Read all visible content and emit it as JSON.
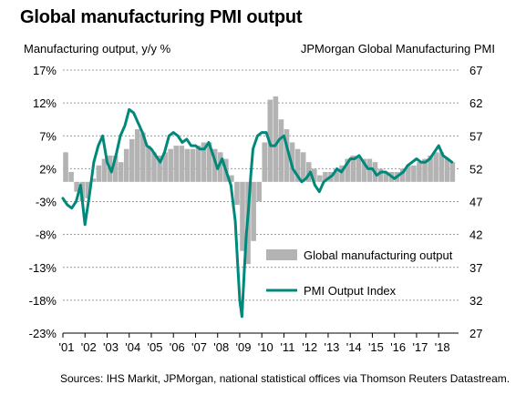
{
  "chart_data": {
    "type": "bar+line",
    "title": "Global manufacturing PMI output",
    "ylabel_left": "Manufacturing output, y/y %",
    "ylabel_right": "JPMorgan Global Manufacturing PMI",
    "source": "Sources: IHS Markit, JPMorgan, national statistical offices via Thomson Reuters Datastream.",
    "left_axis": {
      "ylim": [
        -23,
        17
      ],
      "ticks": [
        17,
        12,
        7,
        2,
        -3,
        -8,
        -13,
        -18,
        -23
      ],
      "tick_suffix": "%"
    },
    "right_axis": {
      "ylim": [
        27,
        67
      ],
      "ticks": [
        67,
        62,
        57,
        52,
        47,
        42,
        37,
        32,
        27
      ]
    },
    "x_tick_labels": [
      "'01",
      "'02",
      "'03",
      "'04",
      "'05",
      "'06",
      "'07",
      "'08",
      "'09",
      "'10",
      "'11",
      "'12",
      "'13",
      "'14",
      "'15",
      "'16",
      "'17",
      "'18"
    ],
    "x_range": [
      2001.0,
      2018.9
    ],
    "grid": "horizontal dashed",
    "legend_placement": "bottom-right",
    "colors": {
      "bars": "#b3b3b3",
      "line": "#00897b"
    },
    "series": [
      {
        "name": "Global manufacturing output",
        "type": "bar",
        "axis": "left",
        "x": [
          2001.0,
          2001.25,
          2001.5,
          2001.75,
          2002.0,
          2002.25,
          2002.5,
          2002.75,
          2003.0,
          2003.25,
          2003.5,
          2003.75,
          2004.0,
          2004.25,
          2004.5,
          2004.75,
          2005.0,
          2005.25,
          2005.5,
          2005.75,
          2006.0,
          2006.25,
          2006.5,
          2006.75,
          2007.0,
          2007.25,
          2007.5,
          2007.75,
          2008.0,
          2008.25,
          2008.5,
          2008.75,
          2009.0,
          2009.25,
          2009.5,
          2009.75,
          2010.0,
          2010.25,
          2010.5,
          2010.75,
          2011.0,
          2011.25,
          2011.5,
          2011.75,
          2012.0,
          2012.25,
          2012.5,
          2012.75,
          2013.0,
          2013.25,
          2013.5,
          2013.75,
          2014.0,
          2014.25,
          2014.5,
          2014.75,
          2015.0,
          2015.25,
          2015.5,
          2015.75,
          2016.0,
          2016.25,
          2016.5,
          2016.75,
          2017.0,
          2017.25,
          2017.5,
          2017.75,
          2018.0,
          2018.25,
          2018.5
        ],
        "values": [
          4.5,
          1.5,
          -1.5,
          -3.0,
          -2.5,
          0.5,
          2.5,
          3.5,
          4.0,
          4.0,
          3.0,
          5.0,
          6.5,
          8.0,
          7.5,
          5.5,
          4.5,
          4.0,
          4.5,
          5.0,
          5.5,
          5.5,
          5.0,
          5.0,
          5.5,
          6.0,
          6.0,
          5.0,
          4.5,
          3.5,
          1.0,
          -3.5,
          -10.5,
          -12.5,
          -9.0,
          -3.0,
          6.0,
          12.5,
          13.0,
          9.5,
          8.0,
          6.0,
          5.0,
          4.5,
          3.0,
          2.0,
          1.0,
          1.5,
          1.5,
          2.0,
          2.5,
          3.5,
          4.0,
          4.0,
          3.5,
          3.5,
          3.0,
          2.0,
          1.5,
          1.5,
          1.5,
          2.0,
          2.5,
          2.5,
          3.0,
          3.5,
          4.0,
          4.5,
          4.5,
          3.5,
          3.0
        ]
      },
      {
        "name": "PMI Output Index",
        "type": "line",
        "axis": "right",
        "x": [
          2001.0,
          2001.2,
          2001.4,
          2001.6,
          2001.8,
          2002.0,
          2002.2,
          2002.4,
          2002.6,
          2002.8,
          2003.0,
          2003.2,
          2003.4,
          2003.6,
          2003.8,
          2004.0,
          2004.2,
          2004.4,
          2004.6,
          2004.8,
          2005.0,
          2005.2,
          2005.4,
          2005.6,
          2005.8,
          2006.0,
          2006.2,
          2006.4,
          2006.6,
          2006.8,
          2007.0,
          2007.2,
          2007.4,
          2007.6,
          2007.8,
          2008.0,
          2008.2,
          2008.4,
          2008.6,
          2008.8,
          2008.9,
          2009.0,
          2009.1,
          2009.2,
          2009.3,
          2009.4,
          2009.5,
          2009.6,
          2009.8,
          2010.0,
          2010.2,
          2010.4,
          2010.6,
          2010.8,
          2011.0,
          2011.2,
          2011.4,
          2011.6,
          2011.8,
          2012.0,
          2012.2,
          2012.4,
          2012.6,
          2012.8,
          2013.0,
          2013.2,
          2013.4,
          2013.6,
          2013.8,
          2014.0,
          2014.2,
          2014.4,
          2014.6,
          2014.8,
          2015.0,
          2015.2,
          2015.4,
          2015.6,
          2015.8,
          2016.0,
          2016.2,
          2016.4,
          2016.6,
          2016.8,
          2017.0,
          2017.2,
          2017.4,
          2017.6,
          2017.8,
          2018.0,
          2018.2,
          2018.4,
          2018.6
        ],
        "values": [
          47.5,
          46.5,
          46.0,
          47.0,
          49.5,
          43.5,
          48.0,
          53.0,
          55.5,
          57.0,
          53.0,
          51.5,
          54.0,
          57.0,
          58.5,
          61.0,
          60.5,
          59.0,
          57.5,
          55.5,
          55.0,
          54.0,
          53.0,
          54.5,
          57.0,
          57.5,
          57.0,
          56.0,
          56.5,
          55.5,
          55.5,
          55.0,
          55.0,
          56.0,
          54.0,
          52.0,
          53.5,
          51.5,
          49.5,
          44.0,
          38.0,
          32.0,
          29.5,
          36.0,
          42.0,
          46.0,
          51.0,
          55.0,
          57.0,
          57.5,
          57.5,
          55.5,
          55.5,
          56.5,
          57.0,
          54.5,
          52.0,
          51.0,
          50.0,
          50.5,
          51.5,
          49.5,
          48.5,
          50.0,
          50.5,
          51.0,
          52.0,
          51.5,
          52.5,
          53.5,
          53.5,
          54.0,
          53.0,
          52.0,
          52.0,
          51.0,
          51.5,
          51.5,
          51.0,
          50.5,
          51.0,
          51.5,
          52.5,
          53.0,
          53.5,
          53.0,
          53.0,
          53.5,
          54.5,
          55.5,
          54.0,
          53.5,
          53.0
        ]
      }
    ]
  }
}
